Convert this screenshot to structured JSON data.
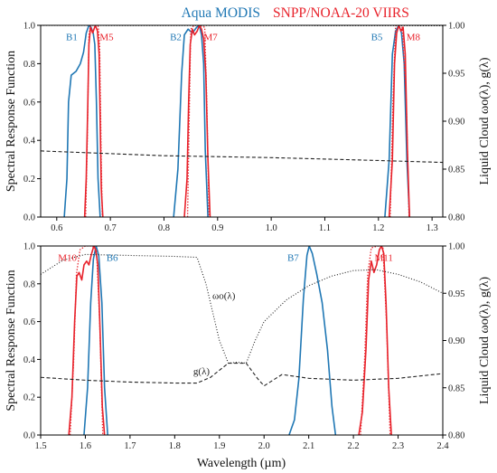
{
  "colors": {
    "modis": "#1f77b4",
    "viirs": "#e8222b",
    "cloud": "#222222",
    "axis": "#000000"
  },
  "legend": {
    "modis": "Aqua MODIS",
    "viirs": "SNPP/NOAA-20 VIIRS"
  },
  "shared": {
    "xlabel": "Wavelength (µm)"
  },
  "chart_data": [
    {
      "type": "line",
      "id": "top",
      "ylabel_left": "Spectral Response Function",
      "ylabel_right": "Liquid Cloud ωo(λ), g(λ)",
      "xlim": [
        0.57,
        1.32
      ],
      "ylim_left": [
        0.0,
        1.0
      ],
      "ylim_right": [
        0.8,
        1.0
      ],
      "xticks": [
        "0.6",
        "0.7",
        "0.8",
        "0.9",
        "1.0",
        "1.1",
        "1.2",
        "1.3"
      ],
      "yticks_left": [
        "0.0",
        "0.2",
        "0.4",
        "0.6",
        "0.8",
        "1.0"
      ],
      "yticks_right": [
        "0.80",
        "0.85",
        "0.90",
        "0.95",
        "1.00"
      ],
      "grid": false,
      "band_labels": [
        {
          "text": "B1",
          "x": 0.628,
          "y": 0.94,
          "sensor": "modis"
        },
        {
          "text": "M5",
          "x": 0.693,
          "y": 0.94,
          "sensor": "viirs"
        },
        {
          "text": "B2",
          "x": 0.822,
          "y": 0.94,
          "sensor": "modis"
        },
        {
          "text": "M7",
          "x": 0.887,
          "y": 0.94,
          "sensor": "viirs"
        },
        {
          "text": "B5",
          "x": 1.197,
          "y": 0.94,
          "sensor": "modis"
        },
        {
          "text": "M8",
          "x": 1.265,
          "y": 0.94,
          "sensor": "viirs"
        }
      ],
      "series": [
        {
          "sensor": "modis",
          "style": "solid",
          "x": [
            0.614,
            0.619,
            0.622,
            0.627,
            0.636,
            0.644,
            0.65,
            0.655,
            0.66,
            0.664,
            0.668,
            0.671,
            0.674,
            0.677,
            0.681
          ],
          "y": [
            0.0,
            0.2,
            0.6,
            0.74,
            0.76,
            0.8,
            0.86,
            0.96,
            1.0,
            0.99,
            0.96,
            0.9,
            0.6,
            0.2,
            0.0
          ]
        },
        {
          "sensor": "modis",
          "style": "solid",
          "x": [
            0.818,
            0.826,
            0.833,
            0.838,
            0.845,
            0.853,
            0.861,
            0.866,
            0.87,
            0.874,
            0.877,
            0.882
          ],
          "y": [
            0.0,
            0.25,
            0.75,
            0.95,
            0.98,
            0.96,
            0.99,
            1.0,
            0.95,
            0.8,
            0.35,
            0.0
          ]
        },
        {
          "sensor": "modis",
          "style": "solid",
          "x": [
            1.212,
            1.22,
            1.226,
            1.232,
            1.238,
            1.243,
            1.248,
            1.253,
            1.258
          ],
          "y": [
            0.0,
            0.3,
            0.85,
            0.97,
            1.0,
            0.96,
            0.8,
            0.3,
            0.0
          ]
        },
        {
          "sensor": "viirs",
          "style": "solid",
          "x": [
            0.652,
            0.655,
            0.658,
            0.66,
            0.663,
            0.667,
            0.672,
            0.676,
            0.679,
            0.681,
            0.683,
            0.686
          ],
          "y": [
            0.0,
            0.2,
            0.6,
            0.9,
            0.99,
            0.96,
            1.0,
            0.97,
            0.85,
            0.5,
            0.15,
            0.0
          ]
        },
        {
          "sensor": "viirs",
          "style": "dotted",
          "x": [
            0.654,
            0.657,
            0.66,
            0.663,
            0.668,
            0.673,
            0.677,
            0.68,
            0.683,
            0.685
          ],
          "y": [
            0.0,
            0.4,
            0.95,
            1.0,
            1.0,
            1.0,
            1.0,
            0.9,
            0.3,
            0.0
          ]
        },
        {
          "sensor": "viirs",
          "style": "solid",
          "x": [
            0.838,
            0.843,
            0.846,
            0.849,
            0.853,
            0.857,
            0.862,
            0.866,
            0.87,
            0.874,
            0.878,
            0.882,
            0.886
          ],
          "y": [
            0.0,
            0.2,
            0.6,
            0.9,
            0.98,
            0.95,
            0.97,
            1.0,
            0.98,
            0.93,
            0.75,
            0.3,
            0.0
          ]
        },
        {
          "sensor": "viirs",
          "style": "dotted",
          "x": [
            0.844,
            0.847,
            0.85,
            0.856,
            0.866,
            0.876,
            0.88,
            0.884
          ],
          "y": [
            0.0,
            0.5,
            0.98,
            1.0,
            1.0,
            0.99,
            0.6,
            0.0
          ]
        },
        {
          "sensor": "viirs",
          "style": "solid",
          "x": [
            1.22,
            1.226,
            1.23,
            1.234,
            1.238,
            1.242,
            1.246,
            1.25,
            1.254,
            1.258
          ],
          "y": [
            0.0,
            0.3,
            0.8,
            0.96,
            1.0,
            0.97,
            0.99,
            0.85,
            0.35,
            0.0
          ]
        },
        {
          "sensor": "viirs",
          "style": "dotted",
          "x": [
            1.222,
            1.227,
            1.232,
            1.244,
            1.252,
            1.257
          ],
          "y": [
            0.0,
            0.6,
            1.0,
            1.0,
            0.6,
            0.0
          ]
        },
        {
          "sensor": "cloud",
          "style": "dotted",
          "axis": "right",
          "x": [
            0.57,
            1.0,
            1.32
          ],
          "y": [
            0.9999,
            0.9998,
            0.9996
          ]
        },
        {
          "sensor": "cloud",
          "style": "dashed",
          "axis": "right",
          "x": [
            0.57,
            0.8,
            1.0,
            1.2,
            1.32
          ],
          "y": [
            0.869,
            0.864,
            0.862,
            0.859,
            0.857
          ]
        }
      ]
    },
    {
      "type": "line",
      "id": "bottom",
      "ylabel_left": "Spectral Response Function",
      "ylabel_right": "Liquid Cloud ωo(λ), g(λ)",
      "xlabel": "Wavelength (µm)",
      "xlim": [
        1.5,
        2.4
      ],
      "ylim_left": [
        0.0,
        1.0
      ],
      "ylim_right": [
        0.8,
        1.0
      ],
      "xticks": [
        "1.5",
        "1.6",
        "1.7",
        "1.8",
        "1.9",
        "2.0",
        "2.1",
        "2.2",
        "2.3",
        "2.4"
      ],
      "yticks_left": [
        "0.0",
        "0.2",
        "0.4",
        "0.6",
        "0.8",
        "1.0"
      ],
      "yticks_right": [
        "0.80",
        "0.85",
        "0.90",
        "0.95",
        "1.00"
      ],
      "grid": false,
      "band_labels": [
        {
          "text": "M10",
          "x": 1.56,
          "y": 0.94,
          "sensor": "viirs"
        },
        {
          "text": "B6",
          "x": 1.66,
          "y": 0.94,
          "sensor": "modis"
        },
        {
          "text": "B7",
          "x": 2.065,
          "y": 0.94,
          "sensor": "modis"
        },
        {
          "text": "M11",
          "x": 2.268,
          "y": 0.94,
          "sensor": "viirs"
        }
      ],
      "curve_labels": [
        {
          "text": "ωo(λ)",
          "x": 1.91,
          "y": 0.74
        },
        {
          "text": "g(λ)",
          "x": 1.86,
          "y": 0.34
        }
      ],
      "series": [
        {
          "sensor": "modis",
          "style": "solid",
          "x": [
            1.597,
            1.605,
            1.612,
            1.618,
            1.624,
            1.63,
            1.637,
            1.643,
            1.65
          ],
          "y": [
            0.0,
            0.25,
            0.7,
            0.93,
            1.0,
            0.95,
            0.7,
            0.25,
            0.0
          ]
        },
        {
          "sensor": "modis",
          "style": "solid",
          "x": [
            2.056,
            2.068,
            2.078,
            2.088,
            2.096,
            2.101,
            2.108,
            2.118,
            2.13,
            2.142,
            2.152,
            2.16
          ],
          "y": [
            0.0,
            0.08,
            0.3,
            0.72,
            0.95,
            1.0,
            0.96,
            0.85,
            0.7,
            0.45,
            0.15,
            0.0
          ]
        },
        {
          "sensor": "viirs",
          "style": "solid",
          "x": [
            1.563,
            1.57,
            1.576,
            1.581,
            1.586,
            1.592,
            1.597,
            1.603,
            1.608,
            1.614,
            1.619,
            1.623,
            1.628,
            1.633,
            1.638,
            1.643
          ],
          "y": [
            0.0,
            0.2,
            0.6,
            0.84,
            0.86,
            0.82,
            0.9,
            0.92,
            0.9,
            0.96,
            1.0,
            0.98,
            0.9,
            0.55,
            0.15,
            0.0
          ]
        },
        {
          "sensor": "viirs",
          "style": "dotted",
          "x": [
            1.566,
            1.574,
            1.58,
            1.588,
            1.6,
            1.615,
            1.625,
            1.632,
            1.639
          ],
          "y": [
            0.0,
            0.4,
            0.85,
            0.98,
            1.0,
            1.0,
            0.98,
            0.6,
            0.0
          ]
        },
        {
          "sensor": "viirs",
          "style": "solid",
          "x": [
            2.212,
            2.22,
            2.228,
            2.234,
            2.24,
            2.246,
            2.252,
            2.258,
            2.263,
            2.268,
            2.273,
            2.279,
            2.285
          ],
          "y": [
            0.0,
            0.12,
            0.45,
            0.82,
            0.92,
            0.86,
            0.9,
            0.98,
            1.0,
            0.96,
            0.7,
            0.25,
            0.0
          ]
        },
        {
          "sensor": "viirs",
          "style": "dotted",
          "x": [
            2.216,
            2.225,
            2.232,
            2.24,
            2.255,
            2.266,
            2.274,
            2.282
          ],
          "y": [
            0.0,
            0.4,
            0.85,
            0.99,
            1.0,
            0.99,
            0.6,
            0.0
          ]
        },
        {
          "sensor": "cloud",
          "style": "dotted",
          "axis": "right",
          "x": [
            1.5,
            1.55,
            1.6,
            1.7,
            1.8,
            1.85,
            1.87,
            1.9,
            1.92,
            1.94,
            1.96,
            1.98,
            2.0,
            2.05,
            2.1,
            2.15,
            2.2,
            2.25,
            2.3,
            2.35,
            2.4
          ],
          "y": [
            0.97,
            0.985,
            0.991,
            0.99,
            0.989,
            0.988,
            0.96,
            0.9,
            0.876,
            0.877,
            0.876,
            0.9,
            0.92,
            0.943,
            0.958,
            0.968,
            0.974,
            0.975,
            0.97,
            0.962,
            0.95
          ]
        },
        {
          "sensor": "cloud",
          "style": "dashed",
          "axis": "right",
          "x": [
            1.5,
            1.6,
            1.7,
            1.8,
            1.85,
            1.88,
            1.92,
            1.96,
            1.985,
            2.0,
            2.04,
            2.1,
            2.2,
            2.3,
            2.4
          ],
          "y": [
            0.861,
            0.858,
            0.856,
            0.855,
            0.855,
            0.861,
            0.876,
            0.876,
            0.86,
            0.852,
            0.864,
            0.86,
            0.858,
            0.86,
            0.865
          ]
        }
      ]
    }
  ]
}
